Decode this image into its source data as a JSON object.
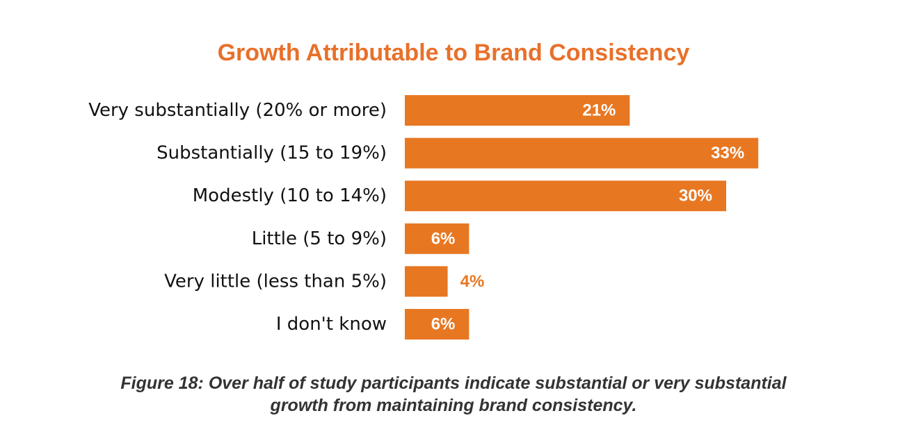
{
  "colors": {
    "bar": "#E87722",
    "title": "#E8702A",
    "caption": "#333333",
    "value_inside": "#FFFFFF",
    "value_outside": "#E87722"
  },
  "chart_data": {
    "type": "bar",
    "orientation": "horizontal",
    "title": "Growth Attributable to Brand Consistency",
    "categories": [
      "Very substantially (20% or more)",
      "Substantially (15 to 19%)",
      "Modestly (10 to 14%)",
      "Little (5 to 9%)",
      "Very little (less than 5%)",
      "I don't know"
    ],
    "values": [
      21,
      33,
      30,
      6,
      4,
      6
    ],
    "value_labels": [
      "21%",
      "33%",
      "30%",
      "6%",
      "4%",
      "6%"
    ],
    "xlim": [
      0,
      50
    ],
    "grid": false,
    "legend": "none"
  },
  "caption": {
    "line1": "Figure 18: Over half of study participants indicate substantial or very substantial",
    "line2": "growth from maintaining brand consistency."
  }
}
